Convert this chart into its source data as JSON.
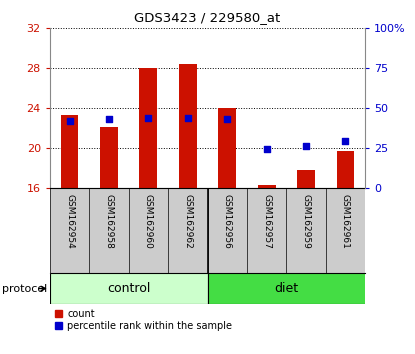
{
  "title": "GDS3423 / 229580_at",
  "samples": [
    "GSM162954",
    "GSM162958",
    "GSM162960",
    "GSM162962",
    "GSM162956",
    "GSM162957",
    "GSM162959",
    "GSM162961"
  ],
  "count_values": [
    23.3,
    22.1,
    28.0,
    28.4,
    24.0,
    16.3,
    17.8,
    19.7
  ],
  "count_base": 16,
  "percentile_values": [
    42,
    43,
    44,
    44,
    43,
    24,
    26,
    29
  ],
  "ylim_left": [
    16,
    32
  ],
  "ylim_right": [
    0,
    100
  ],
  "yticks_left": [
    16,
    20,
    24,
    28,
    32
  ],
  "yticks_right": [
    0,
    25,
    50,
    75,
    100
  ],
  "bar_color": "#cc1100",
  "dot_color": "#0000cc",
  "bar_width": 0.45,
  "bg_color": "#ffffff",
  "tick_color_left": "#cc1100",
  "tick_color_right": "#0000cc",
  "control_bg": "#ccffcc",
  "diet_bg": "#44dd44",
  "xlabel_bg": "#cccccc",
  "protocol_label": "protocol",
  "legend_count": "count",
  "legend_percentile": "percentile rank within the sample",
  "group_split": 3.5,
  "n_control": 4,
  "n_diet": 4
}
